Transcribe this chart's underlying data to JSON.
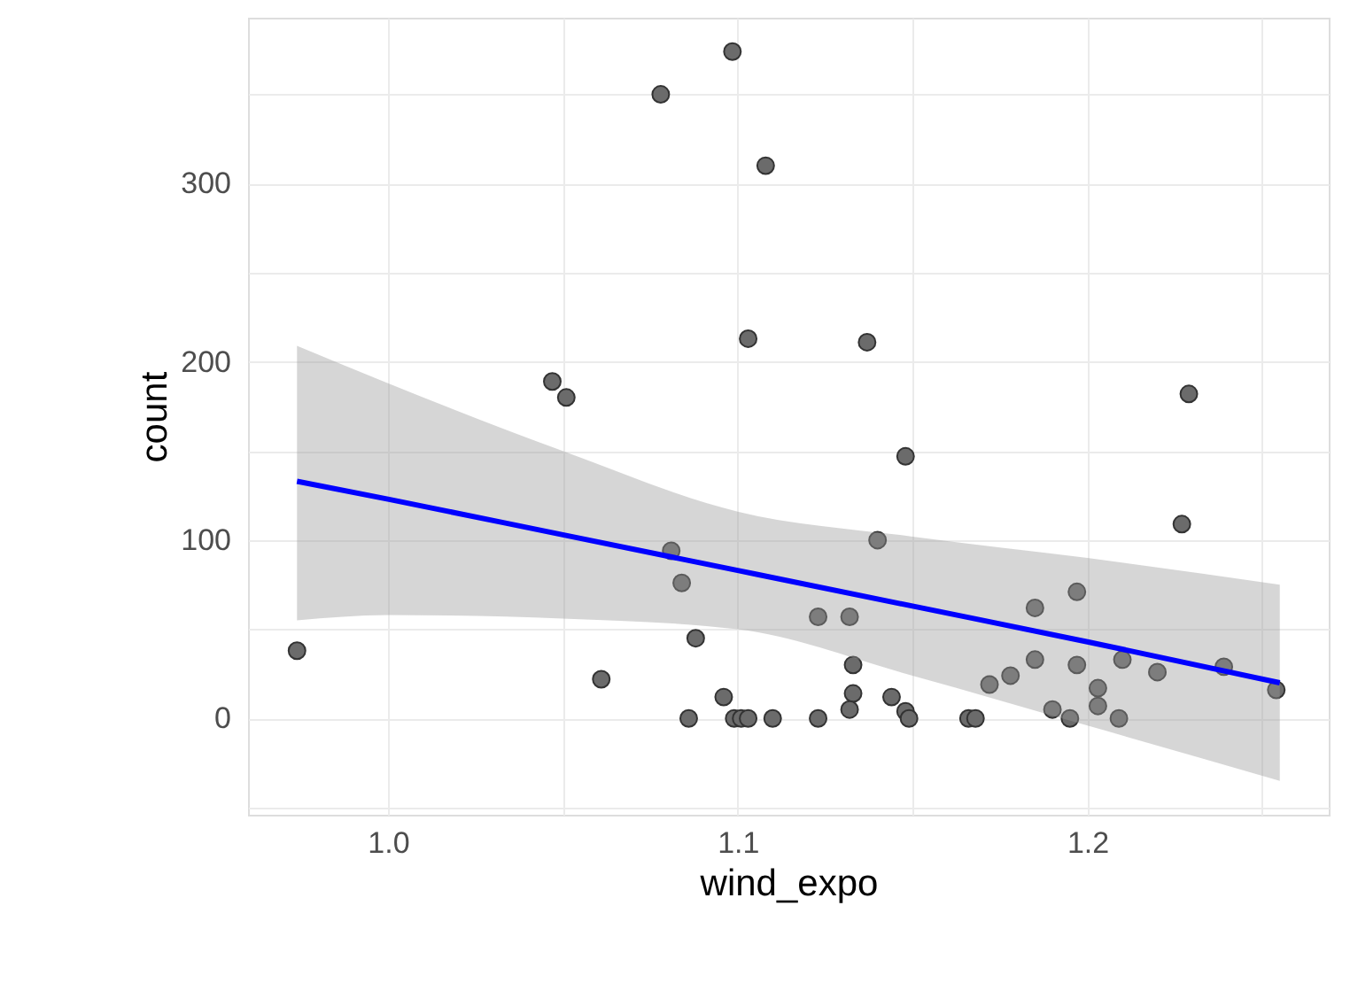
{
  "chart_data": {
    "type": "scatter",
    "xlabel": "wind_expo",
    "ylabel": "count",
    "xlim": [
      0.96,
      1.269
    ],
    "ylim": [
      -54,
      393
    ],
    "xticks": [
      {
        "value": 1.0,
        "label": "1.0"
      },
      {
        "value": 1.05,
        "label": null
      },
      {
        "value": 1.1,
        "label": "1.1"
      },
      {
        "value": 1.15,
        "label": null
      },
      {
        "value": 1.2,
        "label": "1.2"
      },
      {
        "value": 1.25,
        "label": null
      }
    ],
    "yticks": [
      {
        "value": -50,
        "label": null
      },
      0,
      {
        "value": 50,
        "label": null
      },
      100,
      {
        "value": 150,
        "label": null
      },
      200,
      {
        "value": 250,
        "label": null
      },
      300,
      {
        "value": 350,
        "label": null
      }
    ],
    "grid": true,
    "marker": "circle",
    "series": [
      {
        "color": "#6b6b6b",
        "x": [
          1.0985,
          1.078,
          1.108,
          1.103,
          1.047,
          1.051,
          1.137,
          1.148,
          1.229,
          1.227,
          0.974,
          1.081,
          1.084,
          1.088,
          1.061,
          1.096,
          1.086,
          1.099,
          1.101,
          1.103,
          1.11,
          1.123,
          1.14,
          1.123,
          1.132,
          1.133,
          1.133,
          1.132,
          1.144,
          1.148,
          1.149,
          1.166,
          1.168,
          1.172,
          1.178,
          1.185,
          1.185,
          1.19,
          1.195,
          1.197,
          1.197,
          1.203,
          1.203,
          1.209,
          1.21,
          1.22,
          1.239,
          1.254
        ],
        "values": [
          374,
          350,
          310,
          213,
          189,
          180,
          211,
          147,
          182,
          109,
          38,
          94,
          76,
          45,
          22,
          12,
          0,
          0,
          0,
          0,
          0,
          0,
          100,
          57,
          57,
          30,
          14,
          5,
          12,
          4,
          0,
          0,
          0,
          19,
          24,
          62,
          33,
          5,
          0,
          71,
          30,
          17,
          7,
          0,
          33,
          26,
          29,
          16
        ]
      },
      {
        "type": "line",
        "color": "#0000ff",
        "line_style": "solid",
        "marker": "none",
        "x": [
          0.974,
          1.0,
          1.05,
          1.1,
          1.15,
          1.2,
          1.255
        ],
        "values": [
          133,
          123,
          103,
          83,
          63,
          43,
          20
        ],
        "lower": [
          55,
          58,
          56,
          50,
          24,
          -4,
          -35
        ],
        "upper": [
          209,
          188,
          150,
          116,
          102,
          90,
          75
        ]
      }
    ]
  }
}
